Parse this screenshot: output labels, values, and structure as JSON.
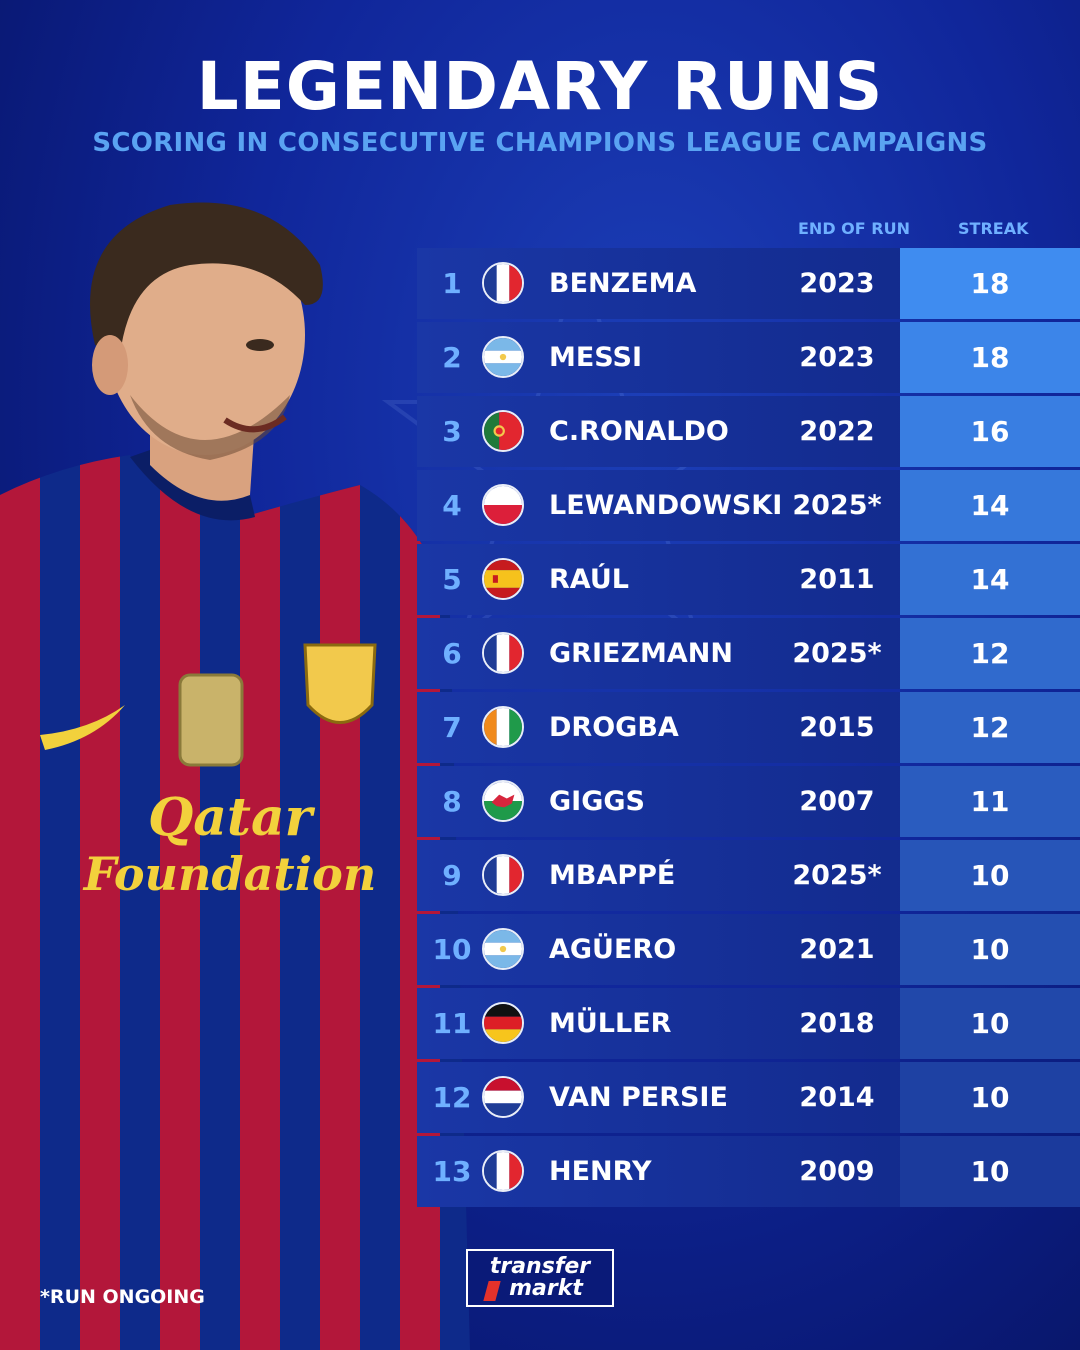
{
  "header": {
    "title": "LEGENDARY RUNS",
    "subtitle": "SCORING IN CONSECUTIVE CHAMPIONS LEAGUE CAMPAIGNS"
  },
  "table": {
    "col_end_of_run": "END OF RUN",
    "col_streak": "STREAK",
    "rows": [
      {
        "rank": "1",
        "flag": "france-flag",
        "name": "BENZEMA",
        "year": "2023",
        "streak": "18"
      },
      {
        "rank": "2",
        "flag": "argentina-flag",
        "name": "MESSI",
        "year": "2023",
        "streak": "18"
      },
      {
        "rank": "3",
        "flag": "portugal-flag",
        "name": "C.RONALDO",
        "year": "2022",
        "streak": "16"
      },
      {
        "rank": "4",
        "flag": "poland-flag",
        "name": "LEWANDOWSKI",
        "year": "2025*",
        "streak": "14"
      },
      {
        "rank": "5",
        "flag": "spain-flag",
        "name": "RAÚL",
        "year": "2011",
        "streak": "14"
      },
      {
        "rank": "6",
        "flag": "france-flag",
        "name": "GRIEZMANN",
        "year": "2025*",
        "streak": "12"
      },
      {
        "rank": "7",
        "flag": "ivory-coast-flag",
        "name": "DROGBA",
        "year": "2015",
        "streak": "12"
      },
      {
        "rank": "8",
        "flag": "wales-flag",
        "name": "GIGGS",
        "year": "2007",
        "streak": "11"
      },
      {
        "rank": "9",
        "flag": "france-flag",
        "name": "MBAPPÉ",
        "year": "2025*",
        "streak": "10"
      },
      {
        "rank": "10",
        "flag": "argentina-flag",
        "name": "AGÜERO",
        "year": "2021",
        "streak": "10"
      },
      {
        "rank": "11",
        "flag": "germany-flag",
        "name": "MÜLLER",
        "year": "2018",
        "streak": "10"
      },
      {
        "rank": "12",
        "flag": "netherlands-flag",
        "name": "VAN PERSIE",
        "year": "2014",
        "streak": "10"
      },
      {
        "rank": "13",
        "flag": "france-flag",
        "name": "HENRY",
        "year": "2009",
        "streak": "10"
      }
    ]
  },
  "footer": {
    "footnote": "*RUN ONGOING",
    "logo_line1": "transfer",
    "logo_line2": "markt"
  },
  "jersey": {
    "sponsor_line1": "Qatar",
    "sponsor_line2": "Foundation"
  },
  "colors": {
    "accent": "#6fb0ff",
    "streak_top": "#3f8cf0",
    "streak_bottom": "#1b3a9c"
  }
}
